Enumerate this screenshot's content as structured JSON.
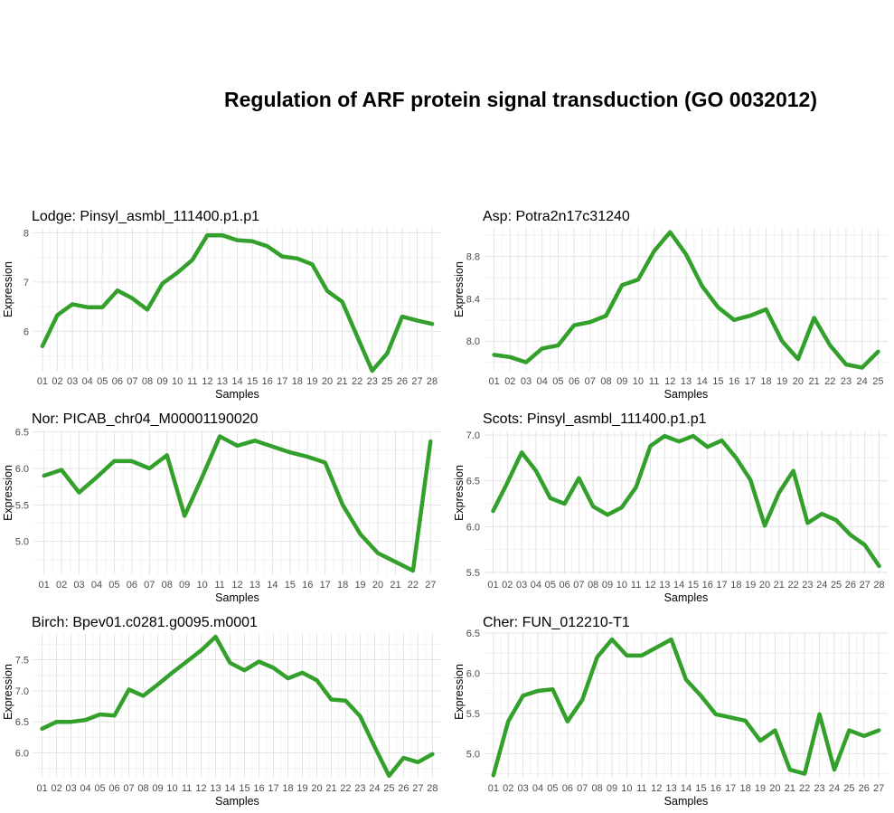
{
  "title": "Regulation of ARF protein signal transduction (GO 0032012)",
  "colors": {
    "line": "#33a02c",
    "grid_major": "#e3e3e3",
    "grid_minor": "#f2f2f2"
  },
  "chart_data": [
    {
      "type": "line",
      "title": "Lodge: Pinsyl_asmbl_111400.p1.p1",
      "xlabel": "Samples",
      "ylabel": "Expression",
      "categories": [
        "01",
        "02",
        "03",
        "04",
        "05",
        "06",
        "07",
        "08",
        "09",
        "10",
        "11",
        "12",
        "13",
        "14",
        "15",
        "16",
        "17",
        "18",
        "19",
        "20",
        "21",
        "22",
        "23",
        "25",
        "26",
        "27",
        "28"
      ],
      "values": [
        5.7,
        6.33,
        6.55,
        6.49,
        6.49,
        6.83,
        6.67,
        6.44,
        6.97,
        7.19,
        7.45,
        7.95,
        7.95,
        7.85,
        7.83,
        7.73,
        7.52,
        7.48,
        7.36,
        6.82,
        6.6,
        5.9,
        5.2,
        5.55,
        6.3,
        6.22,
        6.15
      ],
      "yticks": [
        6,
        7,
        8
      ],
      "ylim": [
        5.2,
        8.1
      ]
    },
    {
      "type": "line",
      "title": "Asp: Potra2n17c31240",
      "xlabel": "Samples",
      "ylabel": "Expression",
      "categories": [
        "01",
        "02",
        "03",
        "04",
        "05",
        "06",
        "07",
        "08",
        "09",
        "10",
        "11",
        "12",
        "13",
        "14",
        "15",
        "16",
        "17",
        "18",
        "19",
        "20",
        "21",
        "22",
        "23",
        "24",
        "25"
      ],
      "values": [
        7.87,
        7.85,
        7.8,
        7.93,
        7.96,
        8.15,
        8.18,
        8.24,
        8.53,
        8.58,
        8.85,
        9.03,
        8.82,
        8.52,
        8.32,
        8.2,
        8.24,
        8.3,
        8.0,
        7.83,
        8.22,
        7.96,
        7.78,
        7.75,
        7.9
      ],
      "yticks": [
        8.0,
        8.4,
        8.8
      ],
      "ylim": [
        7.72,
        9.07
      ]
    },
    {
      "type": "line",
      "title": "Nor: PICAB_chr04_M00001190020",
      "xlabel": "Samples",
      "ylabel": "Expression",
      "categories": [
        "01",
        "02",
        "03",
        "04",
        "05",
        "06",
        "07",
        "08",
        "09",
        "10",
        "11",
        "12",
        "13",
        "14",
        "15",
        "16",
        "17",
        "18",
        "19",
        "20",
        "21",
        "22",
        "27"
      ],
      "values": [
        5.9,
        5.98,
        5.67,
        5.88,
        6.1,
        6.1,
        6.0,
        6.18,
        5.35,
        5.88,
        6.44,
        6.31,
        6.38,
        6.3,
        6.22,
        6.16,
        6.08,
        5.5,
        5.1,
        4.84,
        4.72,
        4.6,
        6.37
      ],
      "yticks": [
        5.0,
        5.5,
        6.0,
        6.5
      ],
      "ylim": [
        4.55,
        6.52
      ]
    },
    {
      "type": "line",
      "title": "Scots: Pinsyl_asmbl_111400.p1.p1",
      "xlabel": "Samples",
      "ylabel": "Expression",
      "categories": [
        "01",
        "02",
        "03",
        "04",
        "05",
        "06",
        "07",
        "08",
        "09",
        "10",
        "11",
        "12",
        "13",
        "14",
        "15",
        "16",
        "17",
        "18",
        "19",
        "20",
        "21",
        "22",
        "23",
        "24",
        "25",
        "26",
        "27",
        "28"
      ],
      "values": [
        6.17,
        6.48,
        6.81,
        6.61,
        6.31,
        6.25,
        6.53,
        6.22,
        6.13,
        6.21,
        6.43,
        6.88,
        6.99,
        6.93,
        6.99,
        6.87,
        6.94,
        6.75,
        6.51,
        6.01,
        6.37,
        6.61,
        6.04,
        6.14,
        6.07,
        5.91,
        5.8,
        5.57
      ],
      "yticks": [
        5.5,
        6.0,
        6.5,
        7.0
      ],
      "ylim": [
        5.48,
        7.05
      ]
    },
    {
      "type": "line",
      "title": "Birch: Bpev01.c0281.g0095.m0001",
      "xlabel": "Samples",
      "ylabel": "Expression",
      "categories": [
        "01",
        "02",
        "03",
        "04",
        "05",
        "06",
        "07",
        "08",
        "09",
        "10",
        "11",
        "12",
        "13",
        "14",
        "15",
        "16",
        "17",
        "18",
        "19",
        "20",
        "21",
        "22",
        "23",
        "24",
        "25",
        "26",
        "27",
        "28"
      ],
      "values": [
        6.39,
        6.5,
        6.5,
        6.53,
        6.62,
        6.6,
        7.02,
        6.92,
        7.1,
        7.29,
        7.47,
        7.65,
        7.87,
        7.45,
        7.33,
        7.47,
        7.37,
        7.2,
        7.29,
        7.17,
        6.86,
        6.84,
        6.59,
        6.1,
        5.63,
        5.92,
        5.85,
        5.98
      ],
      "yticks": [
        6.0,
        6.5,
        7.0,
        7.5
      ],
      "ylim": [
        5.6,
        7.93
      ]
    },
    {
      "type": "line",
      "title": "Cher: FUN_012210-T1",
      "xlabel": "Samples",
      "ylabel": "Expression",
      "categories": [
        "01",
        "02",
        "03",
        "04",
        "05",
        "06",
        "07",
        "08",
        "09",
        "10",
        "11",
        "12",
        "13",
        "14",
        "15",
        "16",
        "17",
        "18",
        "19",
        "20",
        "21",
        "22",
        "23",
        "24",
        "25",
        "26",
        "27"
      ],
      "values": [
        4.73,
        5.4,
        5.72,
        5.78,
        5.8,
        5.4,
        5.67,
        6.2,
        6.42,
        6.22,
        6.22,
        6.32,
        6.42,
        5.92,
        5.72,
        5.49,
        5.45,
        5.41,
        5.16,
        5.29,
        4.8,
        4.75,
        5.49,
        4.8,
        5.29,
        5.22,
        5.29
      ],
      "yticks": [
        5.0,
        5.5,
        6.0,
        6.5
      ],
      "ylim": [
        4.7,
        6.5
      ]
    }
  ]
}
